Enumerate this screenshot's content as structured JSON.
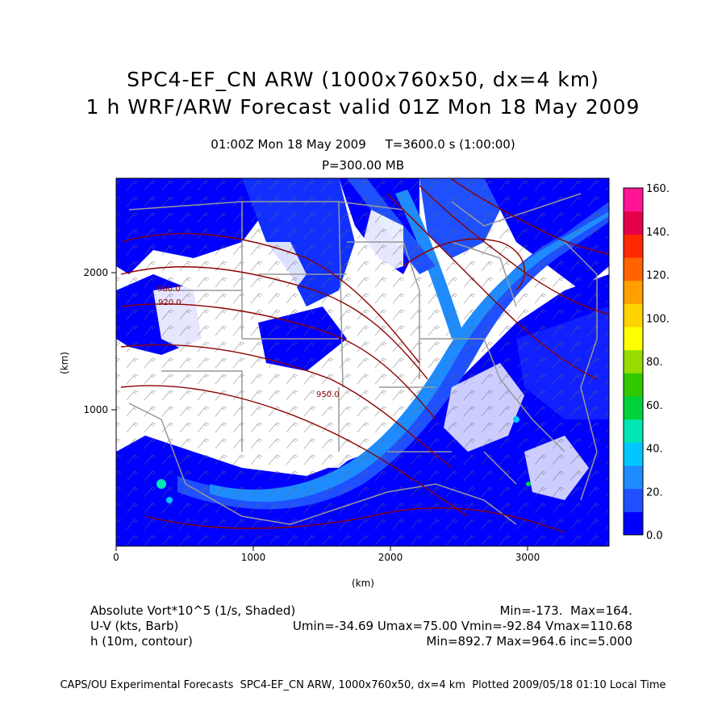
{
  "title": "SPC4-EF_CN ARW (1000x760x50, dx=4 km)",
  "subtitle": "1 h WRF/ARW Forecast valid 01Z Mon 18 May 2009",
  "valid_time": "01:00Z Mon 18 May 2009",
  "model_time": "T=3600.0 s (1:00:00)",
  "level": "P=300.00 MB",
  "x_axis_label": "(km)",
  "y_axis_label": "(km)",
  "x_ticks": [
    "0",
    "1000",
    "2000",
    "3000"
  ],
  "y_ticks": [
    "1000",
    "2000"
  ],
  "contour_labels": [
    "960.0",
    "920.0",
    "950.0"
  ],
  "colorbar": {
    "labels": [
      "0.0",
      "20.",
      "40.",
      "60.",
      "80.",
      "100.",
      "120.",
      "140.",
      "160."
    ],
    "colors": [
      "#0000ff",
      "#1e50ff",
      "#1e8cff",
      "#00c8ff",
      "#00e6b4",
      "#00d23c",
      "#32c800",
      "#96dc00",
      "#ffff00",
      "#ffd200",
      "#ffa000",
      "#ff6400",
      "#ff2800",
      "#e6004b",
      "#ff1493"
    ]
  },
  "field1": {
    "name": "Absolute Vort*10^5 (1/s, Shaded)",
    "stats": "Min=-173.  Max=164."
  },
  "field2": {
    "name": "U-V (kts, Barb)",
    "stats": "Umin=-34.69 Umax=75.00 Vmin=-92.84 Vmax=110.68"
  },
  "field3": {
    "name": "h (10m, contour)",
    "stats": "Min=892.7 Max=964.6 inc=5.000"
  },
  "footer": "CAPS/OU Experimental Forecasts  SPC4-EF_CN ARW, 1000x760x50, dx=4 km  Plotted 2009/05/18 01:10 Local Time"
}
